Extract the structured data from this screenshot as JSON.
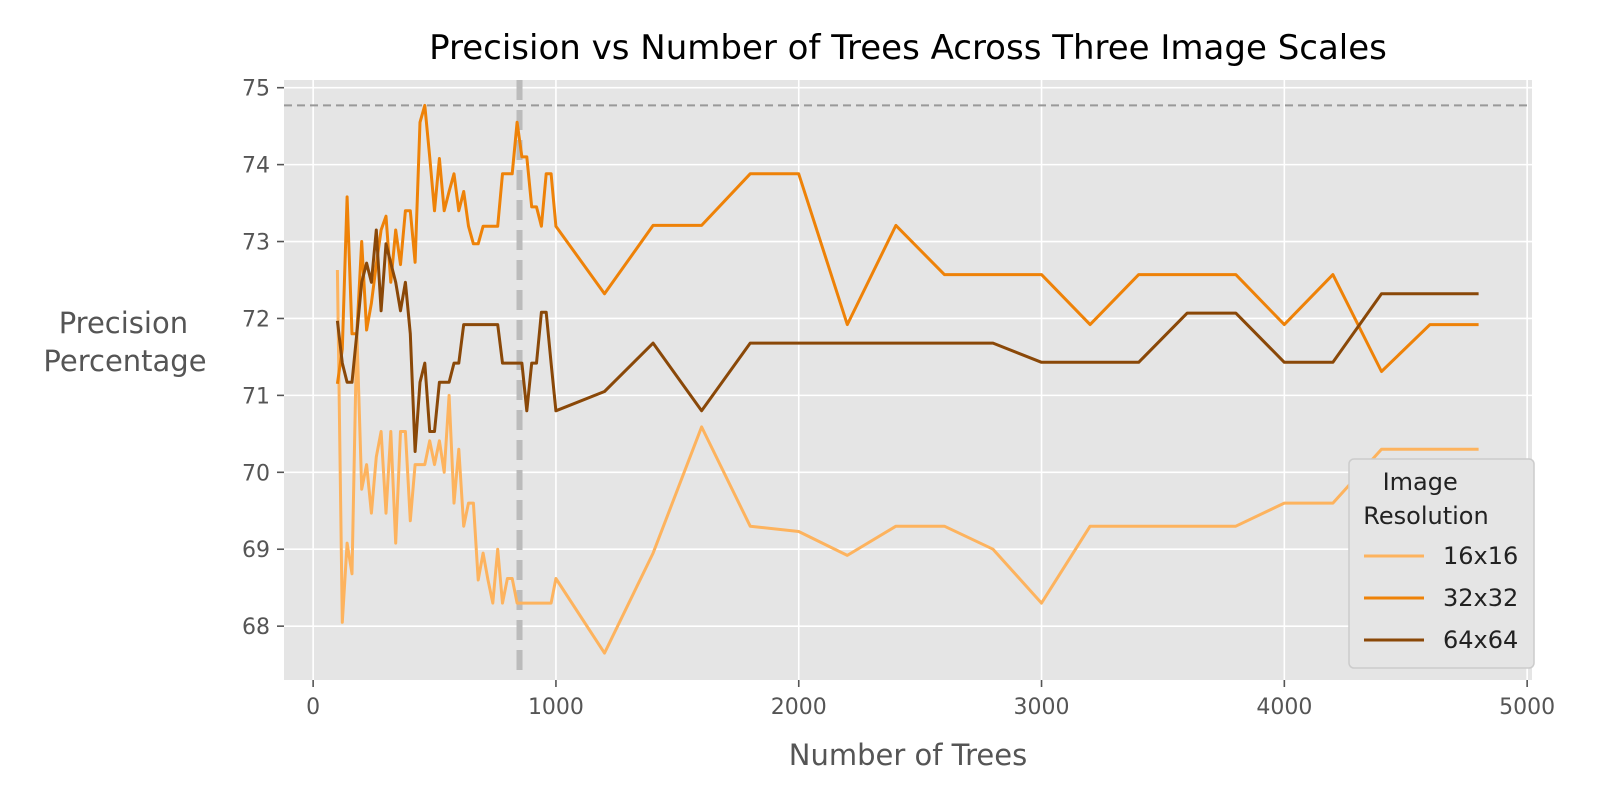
{
  "chart_data": {
    "type": "line",
    "title": "Precision vs Number of Trees Across Three Image Scales",
    "xlabel": "Number of Trees",
    "ylabel": [
      "Precision",
      "Percentage"
    ],
    "xlim": [
      -120,
      5020
    ],
    "ylim": [
      67.3,
      75.1
    ],
    "xticks": [
      0,
      1000,
      2000,
      3000,
      4000,
      5000
    ],
    "yticks": [
      68,
      69,
      70,
      71,
      72,
      73,
      74,
      75
    ],
    "grid": true,
    "legend": {
      "title": [
        "Image",
        "Resolution"
      ],
      "position": "lower-right"
    },
    "reference_lines": [
      {
        "orientation": "horizontal",
        "value": 74.77,
        "style": "dashed",
        "color": "#999999"
      },
      {
        "orientation": "vertical",
        "value": 850,
        "style": "dashed",
        "color": "#bbbbbb"
      }
    ],
    "series": [
      {
        "name": "16x16",
        "color": "#FDB35E",
        "x": [
          100,
          120,
          140,
          160,
          180,
          200,
          220,
          240,
          260,
          280,
          300,
          320,
          340,
          360,
          380,
          400,
          420,
          440,
          460,
          480,
          500,
          520,
          540,
          560,
          580,
          600,
          620,
          640,
          660,
          680,
          700,
          720,
          740,
          760,
          780,
          800,
          820,
          840,
          860,
          880,
          900,
          920,
          940,
          960,
          980,
          1000,
          1200,
          1400,
          1600,
          1800,
          2000,
          2200,
          2400,
          2600,
          2800,
          3000,
          3200,
          3400,
          3600,
          3800,
          4000,
          4200,
          4400,
          4600,
          4800
        ],
        "y": [
          72.63,
          68.05,
          69.08,
          68.68,
          71.85,
          69.78,
          70.1,
          69.47,
          70.2,
          70.53,
          69.47,
          70.53,
          69.08,
          70.53,
          70.53,
          69.37,
          70.1,
          70.1,
          70.1,
          70.41,
          70.1,
          70.41,
          70.0,
          71.0,
          69.6,
          70.3,
          69.3,
          69.6,
          69.6,
          68.6,
          68.95,
          68.6,
          68.3,
          69.0,
          68.3,
          68.62,
          68.62,
          68.3,
          68.3,
          68.3,
          68.3,
          68.3,
          68.3,
          68.3,
          68.3,
          68.62,
          67.65,
          68.95,
          70.59,
          69.3,
          69.23,
          68.92,
          69.3,
          69.3,
          69.0,
          68.3,
          69.3,
          69.3,
          69.3,
          69.3,
          69.6,
          69.6,
          70.3,
          70.3,
          70.3
        ]
      },
      {
        "name": "32x32",
        "color": "#EE8208",
        "x": [
          100,
          120,
          140,
          160,
          180,
          200,
          220,
          240,
          260,
          280,
          300,
          320,
          340,
          360,
          380,
          400,
          420,
          440,
          460,
          480,
          500,
          520,
          540,
          560,
          580,
          600,
          620,
          640,
          660,
          680,
          700,
          720,
          740,
          760,
          780,
          800,
          820,
          840,
          860,
          880,
          900,
          920,
          940,
          960,
          980,
          1000,
          1200,
          1400,
          1600,
          1800,
          2000,
          2200,
          2400,
          2600,
          2800,
          3000,
          3200,
          3400,
          3600,
          3800,
          4000,
          4200,
          4400,
          4600,
          4800
        ],
        "y": [
          71.15,
          71.6,
          73.58,
          71.8,
          71.8,
          73.0,
          71.85,
          72.2,
          72.7,
          73.15,
          73.33,
          72.47,
          73.15,
          72.7,
          73.4,
          73.4,
          72.73,
          74.55,
          74.77,
          74.1,
          73.4,
          74.08,
          73.4,
          73.65,
          73.88,
          73.4,
          73.65,
          73.2,
          72.97,
          72.97,
          73.2,
          73.2,
          73.2,
          73.2,
          73.88,
          73.88,
          73.88,
          74.55,
          74.1,
          74.1,
          73.45,
          73.45,
          73.2,
          73.88,
          73.88,
          73.2,
          72.32,
          73.21,
          73.21,
          73.88,
          73.88,
          71.92,
          73.21,
          72.57,
          72.57,
          72.57,
          71.92,
          72.57,
          72.57,
          72.57,
          71.92,
          72.57,
          71.31,
          71.92,
          71.92
        ]
      },
      {
        "name": "64x64",
        "color": "#8A4808",
        "x": [
          100,
          120,
          140,
          160,
          180,
          200,
          220,
          240,
          260,
          280,
          300,
          320,
          340,
          360,
          380,
          400,
          420,
          440,
          460,
          480,
          500,
          520,
          540,
          560,
          580,
          600,
          620,
          640,
          660,
          680,
          700,
          720,
          740,
          760,
          780,
          800,
          820,
          840,
          860,
          880,
          900,
          920,
          940,
          960,
          980,
          1000,
          1200,
          1400,
          1600,
          1800,
          2000,
          2200,
          2400,
          2600,
          2800,
          3000,
          3200,
          3400,
          3600,
          3800,
          4000,
          4200,
          4400,
          4600,
          4800
        ],
        "y": [
          71.97,
          71.42,
          71.17,
          71.17,
          71.8,
          72.47,
          72.72,
          72.47,
          73.15,
          72.1,
          72.97,
          72.72,
          72.47,
          72.1,
          72.47,
          71.8,
          70.27,
          71.17,
          71.42,
          70.53,
          70.53,
          71.17,
          71.17,
          71.17,
          71.42,
          71.42,
          71.92,
          71.92,
          71.92,
          71.92,
          71.92,
          71.92,
          71.92,
          71.92,
          71.42,
          71.42,
          71.42,
          71.42,
          71.42,
          70.8,
          71.42,
          71.42,
          72.08,
          72.08,
          71.42,
          70.8,
          71.05,
          71.68,
          70.8,
          71.68,
          71.68,
          71.68,
          71.68,
          71.68,
          71.68,
          71.43,
          71.43,
          71.43,
          72.07,
          72.07,
          71.43,
          71.43,
          72.32,
          72.32,
          72.32
        ]
      }
    ]
  }
}
